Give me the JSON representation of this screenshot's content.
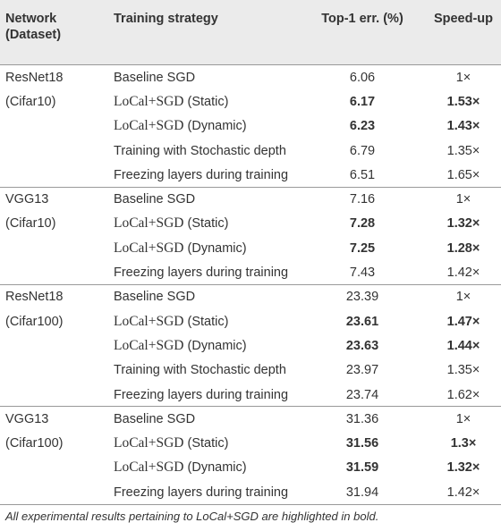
{
  "table": {
    "header": [
      "Network\n(Dataset)",
      "Training strategy",
      "Top-1 err. (%)",
      "Speed-up"
    ],
    "groups": [
      {
        "network": "ResNet18",
        "dataset": "(Cifar10)",
        "rows": [
          {
            "method": "Baseline SGD",
            "error": 6.06,
            "speedup": "1×"
          },
          {
            "method": "LoCal+SGD",
            "variant": "(Static)",
            "math": true,
            "bold": true,
            "error": 6.17,
            "speedup": "1.53×"
          },
          {
            "method": "LoCal+SGD",
            "variant": "(Dynamic)",
            "math": true,
            "bold": true,
            "error": 6.23,
            "speedup": "1.43×"
          },
          {
            "method": "Training with Stochastic depth",
            "error": 6.79,
            "speedup": "1.35×"
          },
          {
            "method": "Freezing layers during training",
            "error": 6.51,
            "speedup": "1.65×"
          }
        ]
      },
      {
        "network": "VGG13",
        "dataset": "(Cifar10)",
        "rows": [
          {
            "method": "Baseline SGD",
            "error": 7.16,
            "speedup": "1×"
          },
          {
            "method": "LoCal+SGD",
            "variant": "(Static)",
            "math": true,
            "bold": true,
            "error": 7.28,
            "speedup": "1.32×"
          },
          {
            "method": "LoCal+SGD",
            "variant": "(Dynamic)",
            "math": true,
            "bold": true,
            "error": 7.25,
            "speedup": "1.28×"
          },
          {
            "method": "Freezing layers during training",
            "error": 7.43,
            "speedup": "1.42×"
          }
        ]
      },
      {
        "network": "ResNet18",
        "dataset": "(Cifar100)",
        "rows": [
          {
            "method": "Baseline SGD",
            "error": 23.39,
            "speedup": "1×"
          },
          {
            "method": "LoCal+SGD",
            "variant": "(Static)",
            "math": true,
            "bold": true,
            "error": 23.61,
            "speedup": "1.47×"
          },
          {
            "method": "LoCal+SGD",
            "variant": "(Dynamic)",
            "math": true,
            "bold": true,
            "error": 23.63,
            "speedup": "1.44×"
          },
          {
            "method": "Training with Stochastic depth",
            "error": 23.97,
            "speedup": "1.35×"
          },
          {
            "method": "Freezing layers during training",
            "error": 23.74,
            "speedup": "1.62×"
          }
        ]
      },
      {
        "network": "VGG13",
        "dataset": "(Cifar100)",
        "rows": [
          {
            "method": "Baseline SGD",
            "error": 31.36,
            "speedup": "1×"
          },
          {
            "method": "LoCal+SGD",
            "variant": "(Static)",
            "math": true,
            "bold": true,
            "error": 31.56,
            "speedup": "1.3×"
          },
          {
            "method": "LoCal+SGD",
            "variant": "(Dynamic)",
            "math": true,
            "bold": true,
            "error": 31.59,
            "speedup": "1.32×"
          },
          {
            "method": "Freezing layers during training",
            "error": 31.94,
            "speedup": "1.42×"
          }
        ]
      }
    ],
    "footnote": "All experimental results pertaining to LoCal+SGD are highlighted in bold."
  }
}
